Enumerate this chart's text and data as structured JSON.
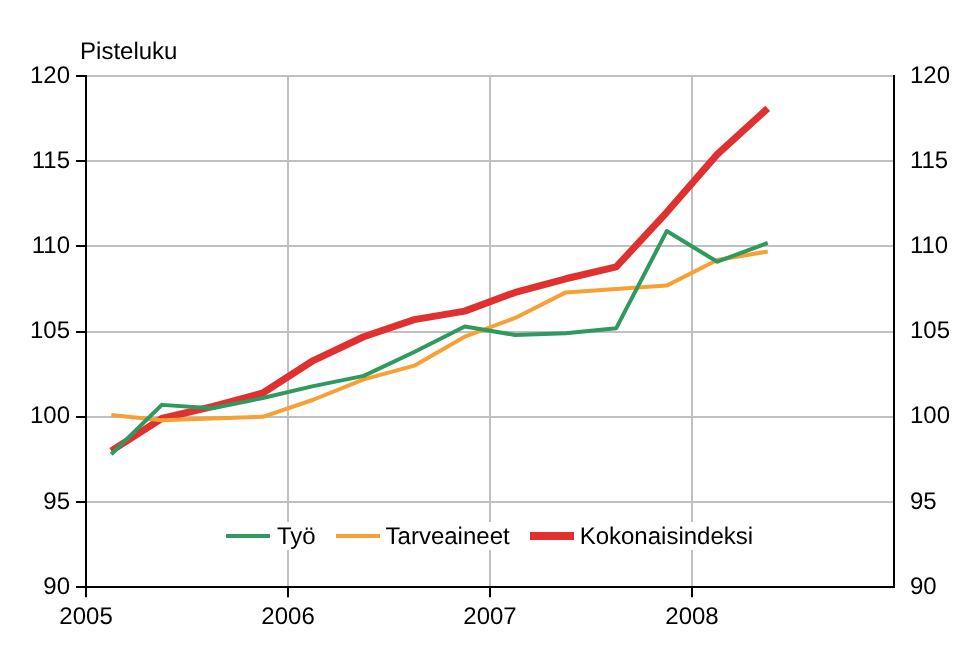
{
  "chart_data": {
    "type": "line",
    "ylabel": "Pisteluku",
    "x": [
      2005.125,
      2005.375,
      2005.625,
      2005.875,
      2006.125,
      2006.375,
      2006.625,
      2006.875,
      2007.125,
      2007.375,
      2007.625,
      2007.875,
      2008.125,
      2008.375
    ],
    "series": [
      {
        "name": "Työ",
        "color": "#2e9a5e",
        "values": [
          97.8,
          100.7,
          100.5,
          101.1,
          101.8,
          102.4,
          103.8,
          105.3,
          104.8,
          104.9,
          105.2,
          110.9,
          109.1,
          110.2
        ]
      },
      {
        "name": "Tarveaineet",
        "color": "#f7a035",
        "values": [
          100.1,
          99.8,
          99.9,
          100.0,
          101.0,
          102.2,
          103.0,
          104.7,
          105.8,
          107.3,
          107.5,
          107.7,
          109.2,
          109.7
        ]
      },
      {
        "name": "Kokonaisindeksi",
        "color": "#e03030",
        "values": [
          98.0,
          99.9,
          100.6,
          101.4,
          103.3,
          104.7,
          105.7,
          106.2,
          107.3,
          108.1,
          108.8,
          112.0,
          115.4,
          118.1
        ]
      }
    ],
    "xlim": [
      2005,
      2009
    ],
    "xticks": [
      2005,
      2006,
      2007,
      2008
    ],
    "ylim": [
      90,
      120
    ],
    "yticks": [
      90,
      95,
      100,
      105,
      110,
      115,
      120
    ],
    "y2lim": [
      90,
      120
    ],
    "y2ticks": [
      90,
      95,
      100,
      105,
      110,
      115,
      120
    ],
    "grid": true,
    "legend": "bottom",
    "marker": "none",
    "line_style": "solid"
  }
}
